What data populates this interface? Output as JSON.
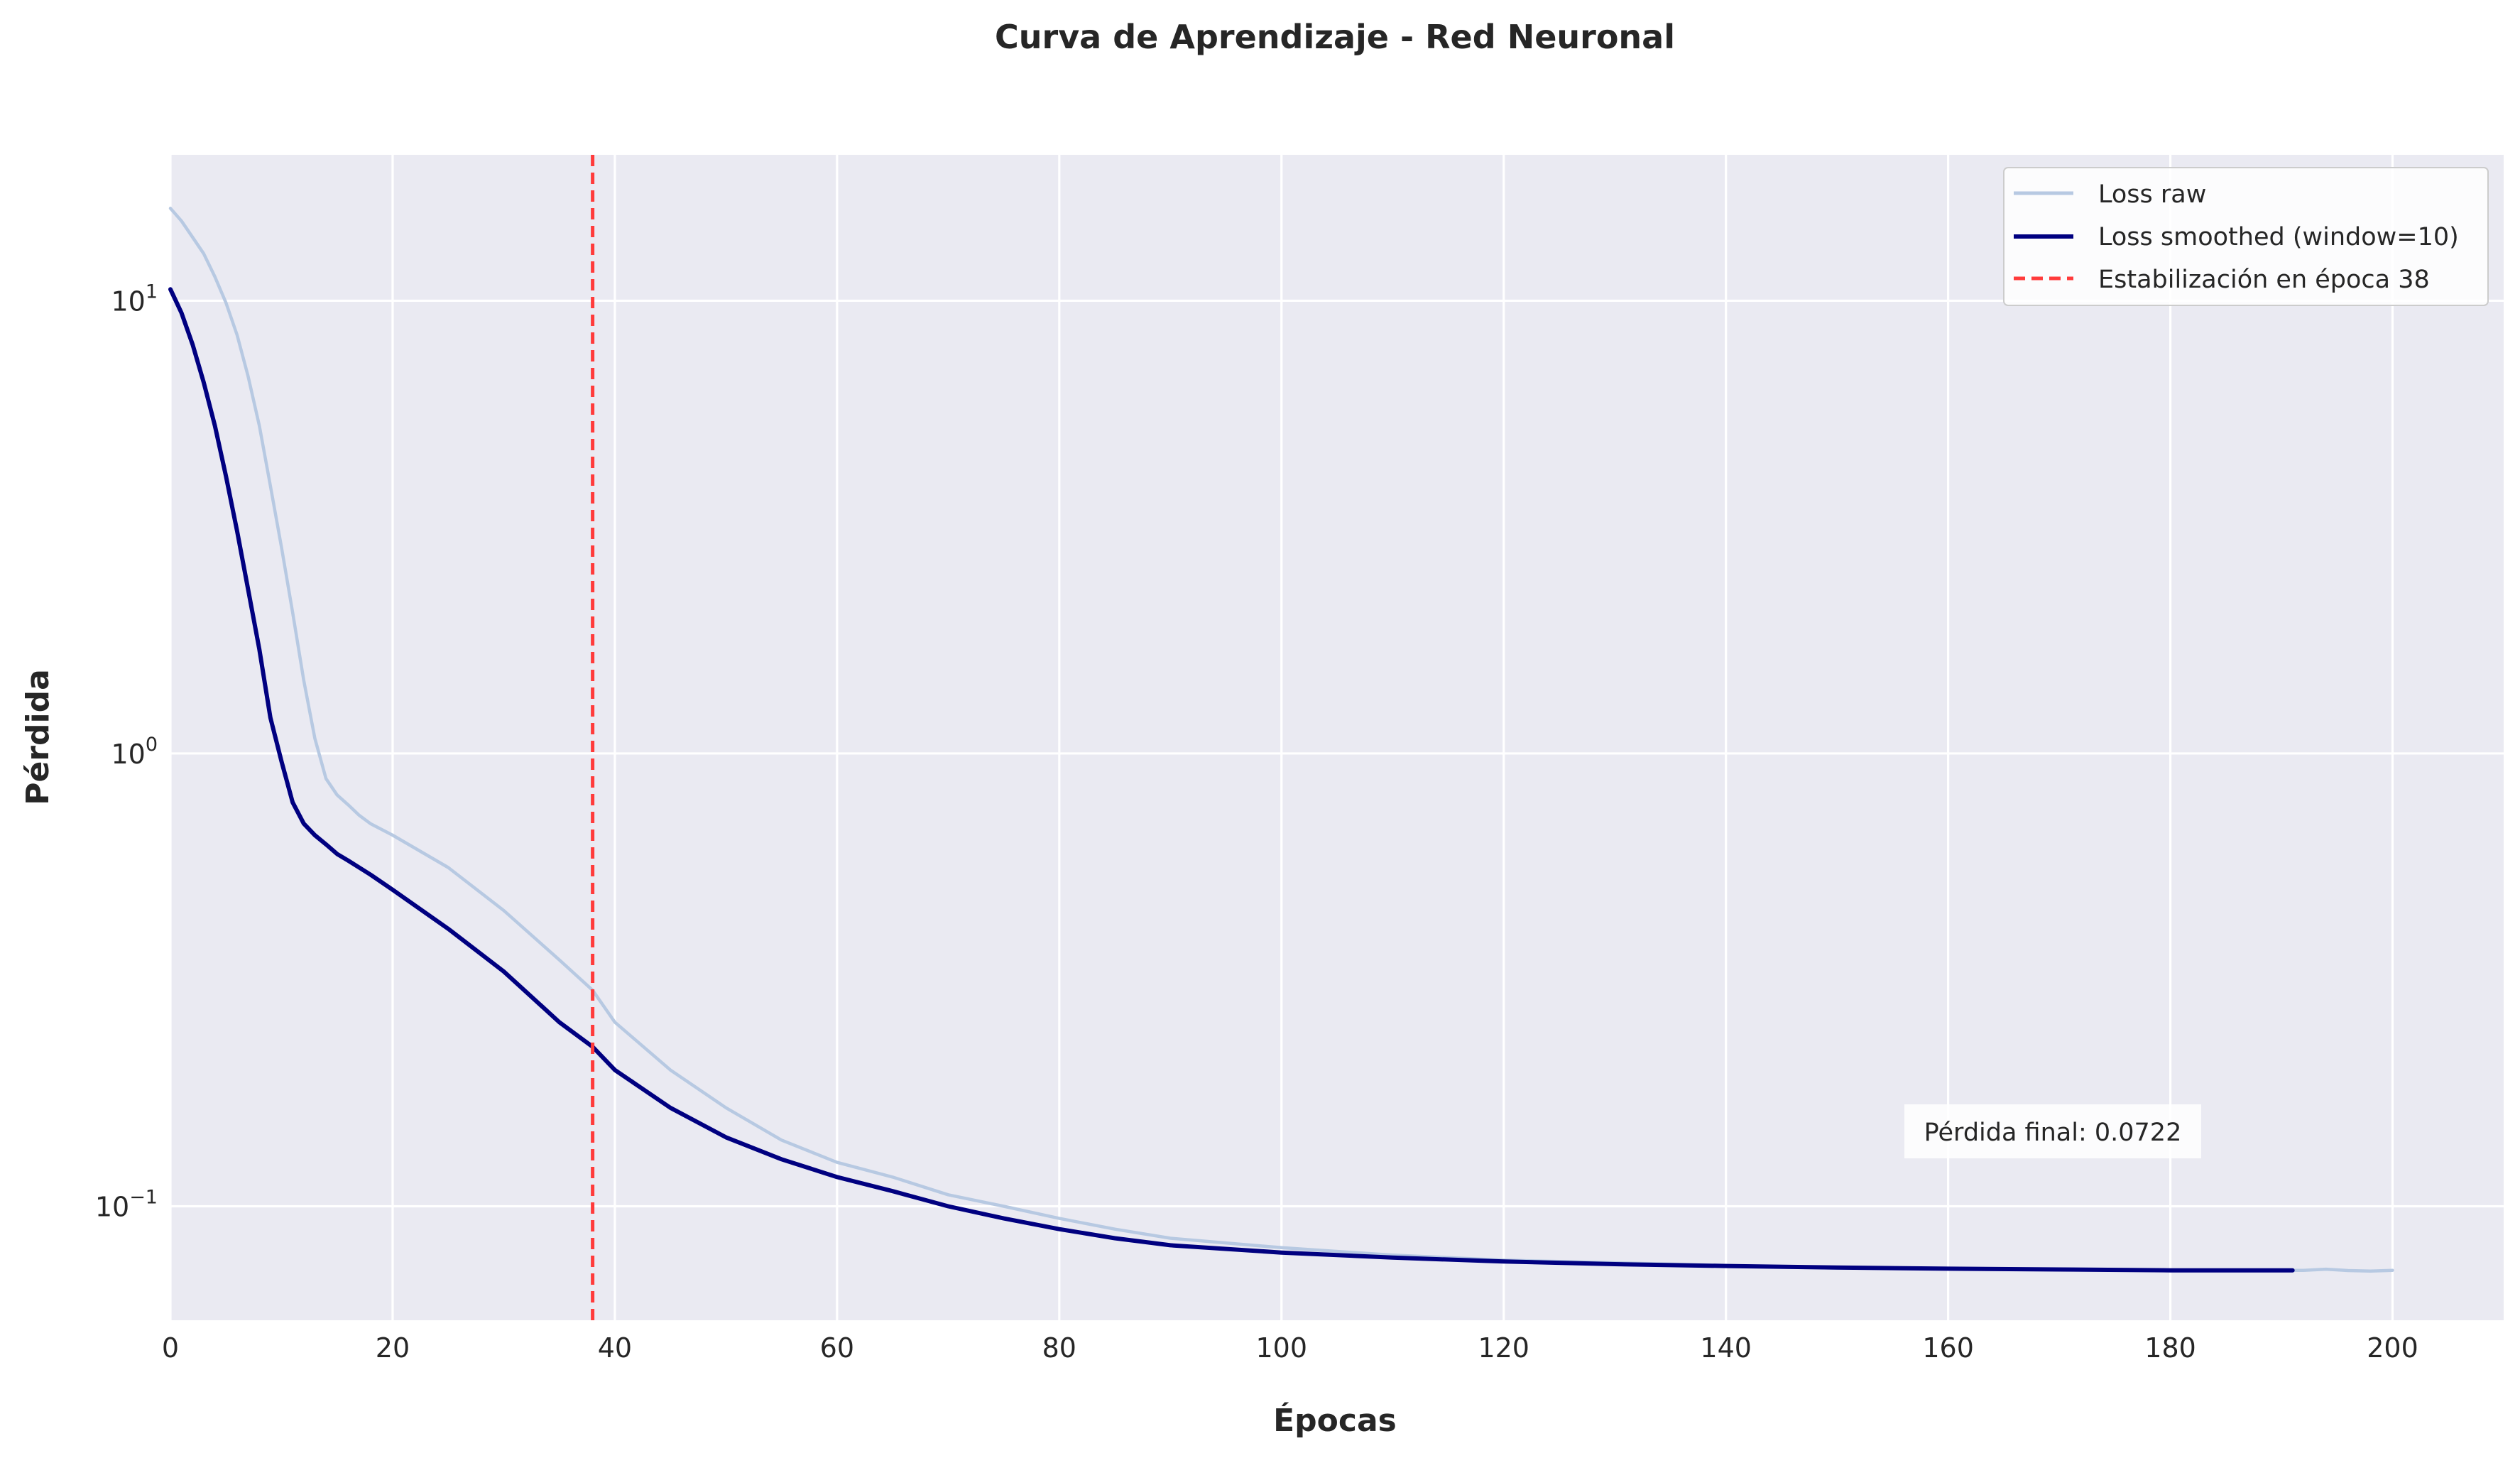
{
  "chart_data": {
    "type": "line",
    "title": "Curva de Aprendizaje - Red Neuronal",
    "xlabel": "Épocas",
    "ylabel": "Pérdida",
    "yscale": "log",
    "xlim": [
      0,
      210
    ],
    "ylim": [
      0.056,
      21
    ],
    "grid": true,
    "legend_position": "top-right",
    "xticks": [
      {
        "value": 0,
        "label": "0"
      },
      {
        "value": 20,
        "label": "20"
      },
      {
        "value": 40,
        "label": "40"
      },
      {
        "value": 60,
        "label": "60"
      },
      {
        "value": 80,
        "label": "80"
      },
      {
        "value": 100,
        "label": "100"
      },
      {
        "value": 120,
        "label": "120"
      },
      {
        "value": 140,
        "label": "140"
      },
      {
        "value": 160,
        "label": "160"
      },
      {
        "value": 180,
        "label": "180"
      },
      {
        "value": 200,
        "label": "200"
      }
    ],
    "yticks": [
      {
        "value": 10,
        "base": "10",
        "exp": "1"
      },
      {
        "value": 1,
        "base": "10",
        "exp": "0"
      },
      {
        "value": 0.1,
        "base": "10",
        "exp": "−1"
      }
    ],
    "series": [
      {
        "name": "Loss raw",
        "color": "#b7c9e2",
        "style": "solid",
        "points": [
          [
            0,
            16.0
          ],
          [
            1,
            15.0
          ],
          [
            2,
            13.8
          ],
          [
            3,
            12.7
          ],
          [
            4,
            11.3
          ],
          [
            5,
            9.9
          ],
          [
            6,
            8.4
          ],
          [
            7,
            6.8
          ],
          [
            8,
            5.3
          ],
          [
            9,
            3.9
          ],
          [
            10,
            2.85
          ],
          [
            11,
            2.05
          ],
          [
            12,
            1.45
          ],
          [
            13,
            1.08
          ],
          [
            14,
            0.88
          ],
          [
            15,
            0.81
          ],
          [
            16,
            0.77
          ],
          [
            17,
            0.73
          ],
          [
            18,
            0.7
          ],
          [
            20,
            0.66
          ],
          [
            25,
            0.56
          ],
          [
            30,
            0.45
          ],
          [
            35,
            0.35
          ],
          [
            38,
            0.3
          ],
          [
            40,
            0.255
          ],
          [
            45,
            0.2
          ],
          [
            50,
            0.165
          ],
          [
            55,
            0.14
          ],
          [
            60,
            0.125
          ],
          [
            65,
            0.116
          ],
          [
            70,
            0.106
          ],
          [
            75,
            0.1
          ],
          [
            80,
            0.094
          ],
          [
            85,
            0.089
          ],
          [
            90,
            0.085
          ],
          [
            100,
            0.081
          ],
          [
            110,
            0.078
          ],
          [
            120,
            0.076
          ],
          [
            130,
            0.075
          ],
          [
            140,
            0.074
          ],
          [
            150,
            0.073
          ],
          [
            160,
            0.0728
          ],
          [
            170,
            0.0725
          ],
          [
            180,
            0.0723
          ],
          [
            185,
            0.0722
          ],
          [
            190,
            0.0722
          ],
          [
            192,
            0.0722
          ],
          [
            194,
            0.0726
          ],
          [
            196,
            0.0721
          ],
          [
            198,
            0.0719
          ],
          [
            200,
            0.0722
          ]
        ]
      },
      {
        "name": "Loss smoothed (window=10)",
        "color": "#000080",
        "style": "solid",
        "points": [
          [
            0,
            10.6
          ],
          [
            1,
            9.4
          ],
          [
            2,
            8.0
          ],
          [
            3,
            6.6
          ],
          [
            4,
            5.3
          ],
          [
            5,
            4.1
          ],
          [
            6,
            3.1
          ],
          [
            7,
            2.3
          ],
          [
            8,
            1.7
          ],
          [
            9,
            1.2
          ],
          [
            10,
            0.96
          ],
          [
            11,
            0.78
          ],
          [
            12,
            0.7
          ],
          [
            13,
            0.66
          ],
          [
            14,
            0.63
          ],
          [
            15,
            0.6
          ],
          [
            16,
            0.58
          ],
          [
            18,
            0.54
          ],
          [
            20,
            0.5
          ],
          [
            25,
            0.41
          ],
          [
            30,
            0.33
          ],
          [
            35,
            0.255
          ],
          [
            38,
            0.225
          ],
          [
            40,
            0.2
          ],
          [
            45,
            0.165
          ],
          [
            50,
            0.142
          ],
          [
            55,
            0.127
          ],
          [
            60,
            0.116
          ],
          [
            65,
            0.108
          ],
          [
            70,
            0.1
          ],
          [
            75,
            0.094
          ],
          [
            80,
            0.089
          ],
          [
            85,
            0.085
          ],
          [
            90,
            0.082
          ],
          [
            100,
            0.079
          ],
          [
            110,
            0.077
          ],
          [
            120,
            0.0755
          ],
          [
            130,
            0.0745
          ],
          [
            140,
            0.0738
          ],
          [
            150,
            0.0732
          ],
          [
            160,
            0.0728
          ],
          [
            170,
            0.0725
          ],
          [
            180,
            0.0722
          ],
          [
            191,
            0.0722
          ]
        ]
      }
    ],
    "vline": {
      "name": "Estabilización en época 38",
      "x": 38,
      "color": "#ff3b3b",
      "style": "dashed"
    },
    "annotation": {
      "text": "Pérdida final: 0.0722"
    }
  }
}
